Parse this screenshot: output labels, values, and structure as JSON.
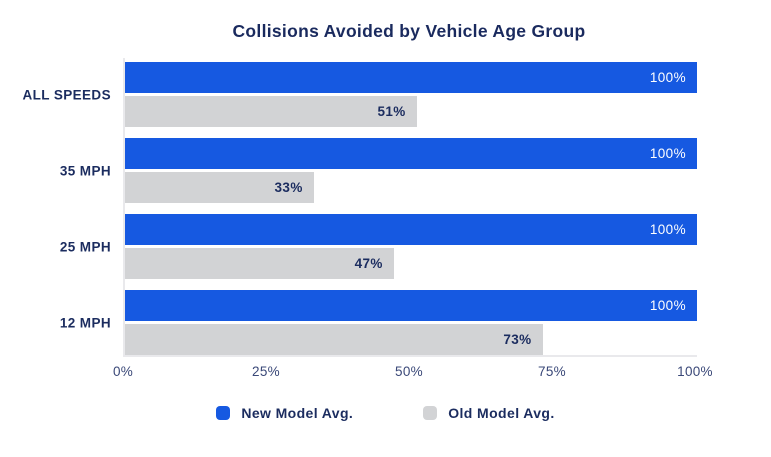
{
  "chart": {
    "title": "Collisions Avoided by Vehicle Age Group"
  },
  "chart_data": {
    "type": "bar",
    "orientation": "horizontal",
    "title": "Collisions Avoided by Vehicle Age Group",
    "categories": [
      "ALL SPEEDS",
      "35 MPH",
      "25 MPH",
      "12 MPH"
    ],
    "series": [
      {
        "name": "New Model Avg.",
        "values": [
          100,
          100,
          100,
          100
        ],
        "color": "#1659E1",
        "label_color": "#FFFFFF",
        "label_weight": "400"
      },
      {
        "name": "Old Model Avg.",
        "values": [
          51,
          33,
          47,
          73
        ],
        "color": "#D2D3D5",
        "label_color": "#1B2C5F",
        "label_weight": "700"
      }
    ],
    "value_suffix": "%",
    "x_ticks": [
      "0%",
      "25%",
      "50%",
      "75%",
      "100%"
    ],
    "xlim": [
      0,
      100
    ],
    "xlabel": "",
    "ylabel": "",
    "grid": false,
    "legend_position": "bottom",
    "bar_labels": "inside-end"
  },
  "colors": {
    "accent_blue": "#1659E1",
    "bar_gray": "#D2D3D5",
    "text_navy": "#1B2C5F",
    "title_navy": "#1A2A5E",
    "tick_label": "#3A4878",
    "axis_line": "#E9E9EC",
    "background": "#FFFFFF"
  }
}
